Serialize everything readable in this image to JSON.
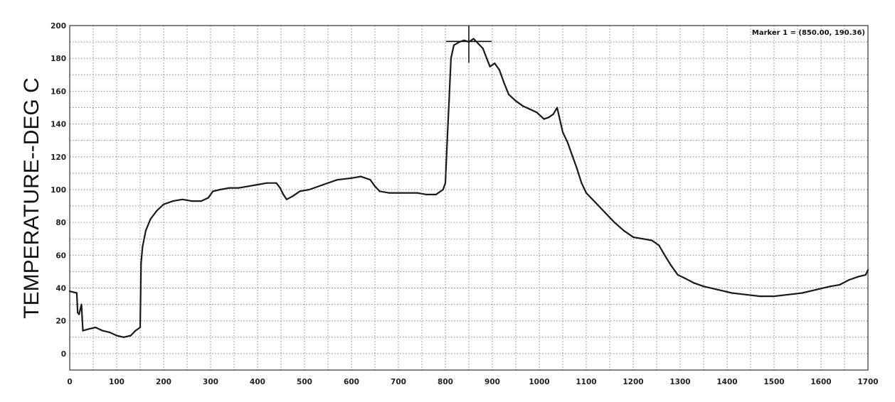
{
  "chart_data": {
    "type": "line",
    "title": "",
    "xlabel": "",
    "ylabel": "TEMPERATURE--DEG C",
    "xlim": [
      0,
      1700
    ],
    "ylim": [
      -10,
      200
    ],
    "grid": true,
    "x_ticks": [
      0,
      100,
      200,
      300,
      400,
      500,
      600,
      700,
      800,
      900,
      1000,
      1100,
      1200,
      1300,
      1400,
      1500,
      1600,
      1700
    ],
    "y_ticks": [
      0,
      20,
      40,
      60,
      80,
      100,
      120,
      140,
      160,
      180,
      200
    ],
    "x_tick_labels": [
      "0",
      "100",
      "200",
      "300",
      "400",
      "500",
      "600",
      "700",
      "800",
      "900",
      "1000",
      "1100",
      "1200",
      "1300",
      "1400",
      "1500",
      "1600",
      "1700"
    ],
    "y_tick_labels": [
      "0",
      "20",
      "40",
      "60",
      "80",
      "100",
      "120",
      "140",
      "160",
      "180",
      "200"
    ],
    "marker": {
      "label": "Marker 1 = (850.00, 190.36)",
      "x": 850,
      "y": 190.36
    },
    "series": [
      {
        "color": "#1a1a1a",
        "points": [
          [
            0,
            38
          ],
          [
            15,
            37
          ],
          [
            17,
            25
          ],
          [
            20,
            24
          ],
          [
            25,
            30
          ],
          [
            28,
            14
          ],
          [
            40,
            15
          ],
          [
            55,
            16
          ],
          [
            70,
            14
          ],
          [
            85,
            13
          ],
          [
            100,
            11
          ],
          [
            115,
            10
          ],
          [
            130,
            11
          ],
          [
            140,
            14
          ],
          [
            150,
            16
          ],
          [
            152,
            55
          ],
          [
            155,
            65
          ],
          [
            162,
            75
          ],
          [
            172,
            82
          ],
          [
            185,
            87
          ],
          [
            200,
            91
          ],
          [
            220,
            93
          ],
          [
            240,
            94
          ],
          [
            260,
            93
          ],
          [
            280,
            93
          ],
          [
            295,
            95
          ],
          [
            305,
            99
          ],
          [
            320,
            100
          ],
          [
            340,
            101
          ],
          [
            360,
            101
          ],
          [
            380,
            102
          ],
          [
            400,
            103
          ],
          [
            420,
            104
          ],
          [
            440,
            104
          ],
          [
            448,
            101
          ],
          [
            455,
            97
          ],
          [
            462,
            94
          ],
          [
            475,
            96
          ],
          [
            490,
            99
          ],
          [
            510,
            100
          ],
          [
            540,
            103
          ],
          [
            570,
            106
          ],
          [
            600,
            107
          ],
          [
            620,
            108
          ],
          [
            640,
            106
          ],
          [
            650,
            102
          ],
          [
            660,
            99
          ],
          [
            680,
            98
          ],
          [
            700,
            98
          ],
          [
            720,
            98
          ],
          [
            740,
            98
          ],
          [
            760,
            97
          ],
          [
            780,
            97
          ],
          [
            795,
            100
          ],
          [
            800,
            104
          ],
          [
            804,
            130
          ],
          [
            808,
            155
          ],
          [
            812,
            180
          ],
          [
            818,
            188
          ],
          [
            830,
            190
          ],
          [
            840,
            191
          ],
          [
            850,
            190
          ],
          [
            860,
            192
          ],
          [
            870,
            189
          ],
          [
            880,
            186
          ],
          [
            888,
            180
          ],
          [
            895,
            175
          ],
          [
            905,
            177
          ],
          [
            915,
            173
          ],
          [
            925,
            165
          ],
          [
            935,
            158
          ],
          [
            950,
            154
          ],
          [
            965,
            151
          ],
          [
            980,
            149
          ],
          [
            995,
            147
          ],
          [
            1010,
            143
          ],
          [
            1020,
            144
          ],
          [
            1030,
            146
          ],
          [
            1038,
            150
          ],
          [
            1042,
            145
          ],
          [
            1050,
            135
          ],
          [
            1060,
            129
          ],
          [
            1070,
            121
          ],
          [
            1080,
            113
          ],
          [
            1090,
            104
          ],
          [
            1100,
            98
          ],
          [
            1120,
            92
          ],
          [
            1140,
            86
          ],
          [
            1160,
            80
          ],
          [
            1180,
            75
          ],
          [
            1200,
            71
          ],
          [
            1220,
            70
          ],
          [
            1240,
            69
          ],
          [
            1255,
            66
          ],
          [
            1265,
            61
          ],
          [
            1280,
            54
          ],
          [
            1295,
            48
          ],
          [
            1310,
            46
          ],
          [
            1330,
            43
          ],
          [
            1350,
            41
          ],
          [
            1380,
            39
          ],
          [
            1410,
            37
          ],
          [
            1440,
            36
          ],
          [
            1470,
            35
          ],
          [
            1500,
            35
          ],
          [
            1530,
            36
          ],
          [
            1560,
            37
          ],
          [
            1590,
            39
          ],
          [
            1620,
            41
          ],
          [
            1640,
            42
          ],
          [
            1660,
            45
          ],
          [
            1680,
            47
          ],
          [
            1695,
            48
          ],
          [
            1700,
            51
          ]
        ]
      }
    ]
  }
}
